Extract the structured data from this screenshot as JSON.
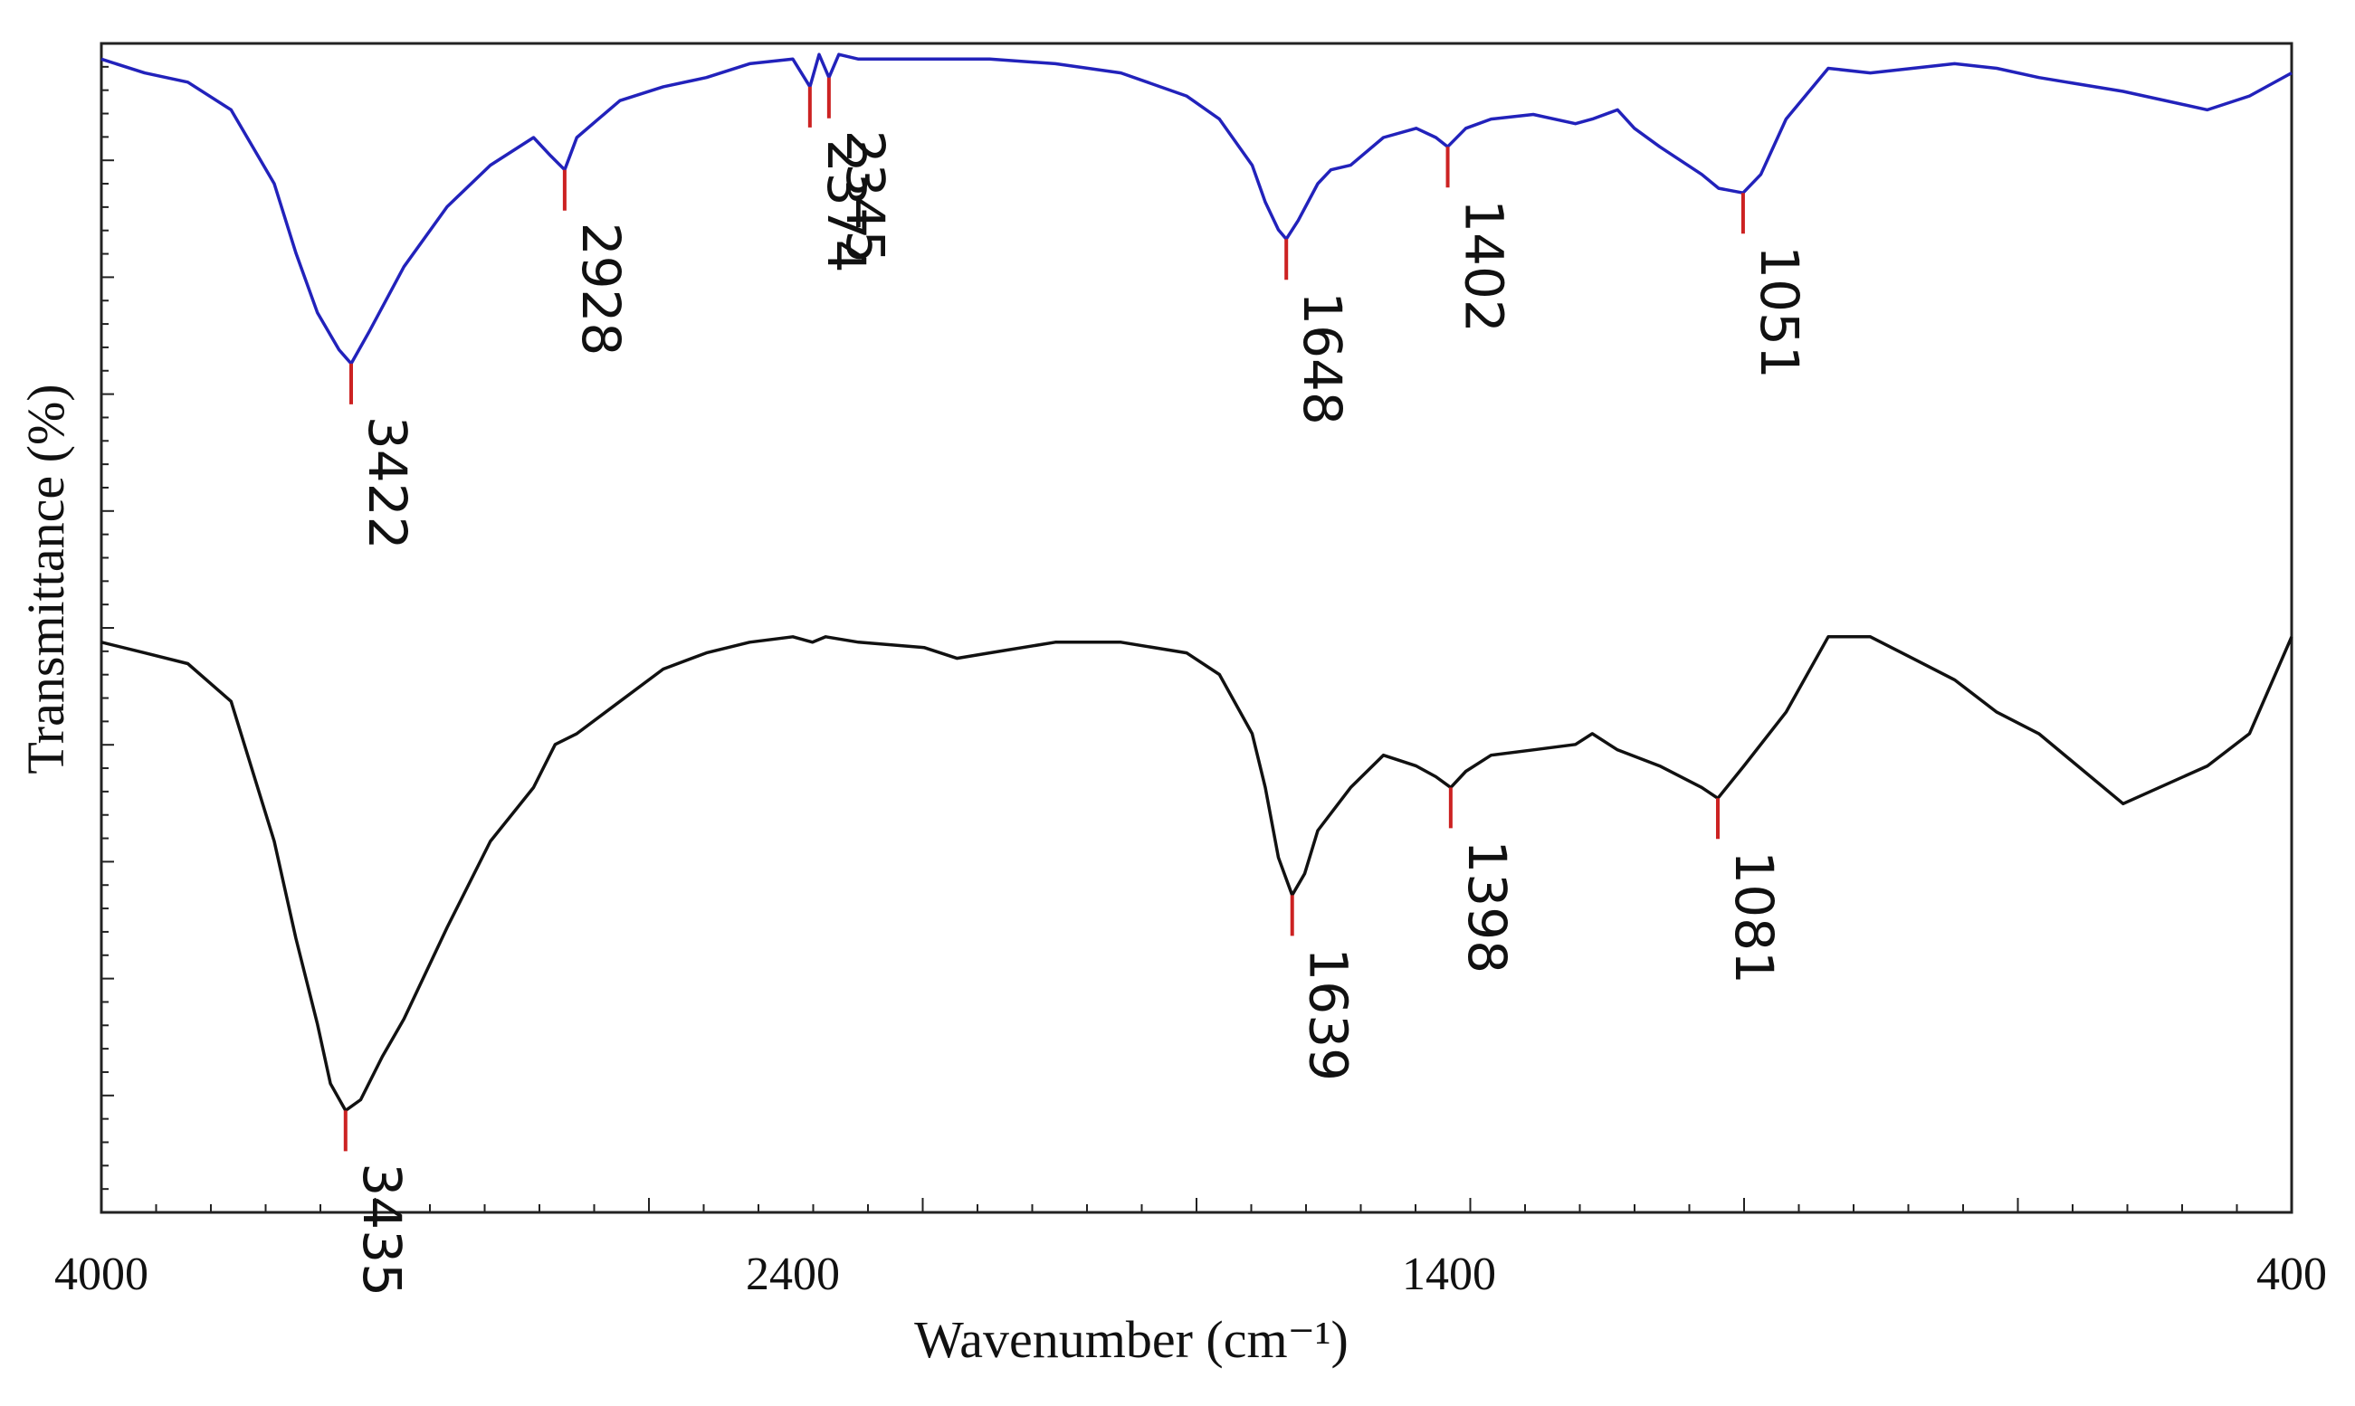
{
  "chart_data": {
    "type": "line",
    "title": "",
    "xlabel": "Wavenumber (cm⁻¹)",
    "ylabel": "Transmittance (%)",
    "xlim": [
      4000,
      400
    ],
    "x_ticks": [
      4000,
      2400,
      1400,
      400
    ],
    "x_tick_labels": [
      "4000",
      "2400",
      "1400",
      "400"
    ],
    "ylim": [
      0,
      100
    ],
    "y_ticks_labeled": false,
    "grid": false,
    "legend": "none",
    "series": [
      {
        "name": "upper spectrum",
        "color": "#2222bb",
        "x": [
          4000,
          3900,
          3800,
          3700,
          3600,
          3550,
          3500,
          3450,
          3422,
          3380,
          3300,
          3200,
          3100,
          3000,
          2960,
          2928,
          2900,
          2850,
          2800,
          2700,
          2600,
          2500,
          2400,
          2374,
          2360,
          2345,
          2330,
          2300,
          2200,
          2100,
          2000,
          1900,
          1800,
          1750,
          1700,
          1680,
          1660,
          1648,
          1630,
          1600,
          1580,
          1550,
          1500,
          1450,
          1420,
          1402,
          1380,
          1350,
          1300,
          1250,
          1230,
          1200,
          1180,
          1150,
          1100,
          1080,
          1051,
          1030,
          1000,
          950,
          900,
          850,
          800,
          750,
          700,
          600,
          500,
          450,
          400
        ],
        "y": [
          97,
          94,
          92,
          86,
          70,
          55,
          42,
          34,
          31,
          38,
          52,
          65,
          74,
          80,
          76,
          73,
          80,
          84,
          88,
          91,
          93,
          96,
          97,
          91,
          98,
          93,
          98,
          97,
          97,
          97,
          96,
          94,
          89,
          84,
          74,
          66,
          60,
          58,
          62,
          70,
          73,
          74,
          80,
          82,
          80,
          78,
          82,
          84,
          85,
          83,
          84,
          86,
          82,
          78,
          72,
          69,
          68,
          72,
          84,
          95,
          94,
          95,
          96,
          95,
          93,
          90,
          86,
          89,
          94
        ]
      },
      {
        "name": "lower spectrum",
        "color": "#111111",
        "x": [
          4000,
          3900,
          3800,
          3700,
          3600,
          3550,
          3500,
          3470,
          3435,
          3400,
          3350,
          3300,
          3200,
          3100,
          3000,
          2950,
          2900,
          2800,
          2700,
          2600,
          2500,
          2400,
          2370,
          2350,
          2300,
          2200,
          2150,
          2100,
          2000,
          1900,
          1800,
          1750,
          1700,
          1680,
          1660,
          1639,
          1620,
          1600,
          1550,
          1500,
          1450,
          1420,
          1398,
          1380,
          1350,
          1300,
          1250,
          1230,
          1200,
          1150,
          1100,
          1081,
          1050,
          1000,
          950,
          900,
          850,
          800,
          750,
          700,
          600,
          500,
          450,
          400
        ],
        "y": [
          95,
          93,
          91,
          84,
          58,
          40,
          24,
          13,
          8,
          10,
          18,
          25,
          42,
          58,
          68,
          76,
          78,
          84,
          90,
          93,
          95,
          96,
          95,
          96,
          95,
          94,
          92,
          93,
          95,
          95,
          93,
          89,
          78,
          68,
          55,
          48,
          52,
          60,
          68,
          74,
          72,
          70,
          68,
          71,
          74,
          75,
          76,
          78,
          75,
          72,
          68,
          66,
          72,
          82,
          96,
          96,
          92,
          88,
          82,
          78,
          65,
          72,
          78,
          96
        ]
      }
    ],
    "peak_annotations": [
      {
        "series": "upper spectrum",
        "x": 3422,
        "label": "3422"
      },
      {
        "series": "upper spectrum",
        "x": 2928,
        "label": "2928"
      },
      {
        "series": "upper spectrum",
        "x": 2374,
        "label": "2374"
      },
      {
        "series": "upper spectrum",
        "x": 2345,
        "label": "2345"
      },
      {
        "series": "upper spectrum",
        "x": 1648,
        "label": "1648"
      },
      {
        "series": "upper spectrum",
        "x": 1402,
        "label": "1402"
      },
      {
        "series": "upper spectrum",
        "x": 1051,
        "label": "1051"
      },
      {
        "series": "lower spectrum",
        "x": 3435,
        "label": "3435"
      },
      {
        "series": "lower spectrum",
        "x": 1639,
        "label": "1639"
      },
      {
        "series": "lower spectrum",
        "x": 1398,
        "label": "1398"
      },
      {
        "series": "lower spectrum",
        "x": 1081,
        "label": "1081"
      }
    ],
    "marker_color": "#cc2222"
  }
}
